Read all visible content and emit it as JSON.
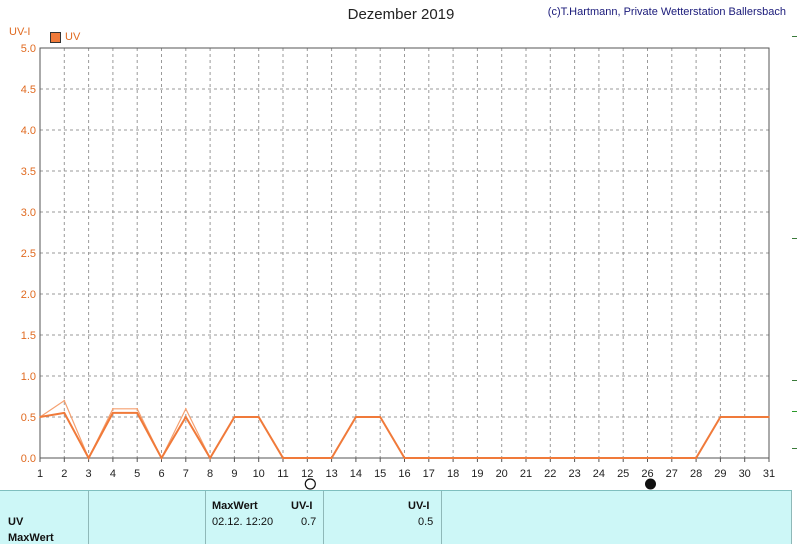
{
  "header": {
    "title": "Dezember 2019",
    "copyright": "(c)T.Hartmann, Private Wetterstation Ballersbach"
  },
  "chart_data": {
    "type": "line",
    "title": "Dezember 2019",
    "ylabel": "UV-I",
    "xlabel": "",
    "ylim": [
      0,
      5
    ],
    "xlim": [
      1,
      31
    ],
    "yticks": [
      "0.0",
      "0.5",
      "1.0",
      "1.5",
      "2.0",
      "2.5",
      "3.0",
      "3.5",
      "4.0",
      "4.5",
      "5.0"
    ],
    "xticks": [
      "1",
      "2",
      "3",
      "4",
      "5",
      "6",
      "7",
      "8",
      "9",
      "10",
      "11",
      "12",
      "13",
      "14",
      "15",
      "16",
      "17",
      "18",
      "19",
      "20",
      "21",
      "22",
      "23",
      "24",
      "25",
      "26",
      "27",
      "28",
      "29",
      "30",
      "31"
    ],
    "grid": true,
    "legend_position": "top-left",
    "series": [
      {
        "name": "UV",
        "color": "#f07a3a",
        "x": [
          1,
          2,
          3,
          4,
          5,
          6,
          7,
          8,
          9,
          10,
          11,
          12,
          13,
          14,
          15,
          16,
          17,
          18,
          19,
          20,
          21,
          22,
          23,
          24,
          25,
          26,
          27,
          28,
          29,
          30,
          31
        ],
        "values": [
          0.5,
          0.55,
          0.0,
          0.55,
          0.55,
          0.0,
          0.5,
          0.0,
          0.5,
          0.5,
          0.0,
          0.0,
          0.0,
          0.5,
          0.5,
          0.0,
          0.0,
          0.0,
          0.0,
          0.0,
          0.0,
          0.0,
          0.0,
          0.0,
          0.0,
          0.0,
          0.0,
          0.0,
          0.5,
          0.5,
          0.5
        ]
      },
      {
        "color": "#f5a070",
        "x": [
          1,
          2,
          3,
          4,
          5,
          6,
          7,
          8,
          9,
          10,
          11,
          12,
          13,
          14,
          15,
          16,
          17,
          18,
          19,
          20,
          21,
          22,
          23,
          24,
          25,
          26,
          27,
          28,
          29,
          30,
          31
        ],
        "values": [
          0.5,
          0.7,
          0.0,
          0.6,
          0.6,
          0.0,
          0.6,
          0.0,
          0.5,
          0.5,
          0.0,
          0.0,
          0.0,
          0.5,
          0.5,
          0.0,
          0.0,
          0.0,
          0.0,
          0.0,
          0.0,
          0.0,
          0.0,
          0.0,
          0.0,
          0.0,
          0.0,
          0.0,
          0.5,
          0.5,
          0.5
        ]
      }
    ],
    "markers": [
      {
        "day": 12,
        "symbol": "full-moon"
      },
      {
        "day": 26,
        "symbol": "new-moon"
      }
    ]
  },
  "legend": {
    "label": "UV"
  },
  "footer": {
    "row1_label": "UV",
    "row2_label": "MaxWert",
    "col_maxwert_header": "MaxWert",
    "col_uvi_header": "UV-I",
    "col_uvi2_header": "UV-I",
    "max_date": "02.12.  12:20",
    "max_value": "0.7",
    "avg_value": "0.5"
  }
}
